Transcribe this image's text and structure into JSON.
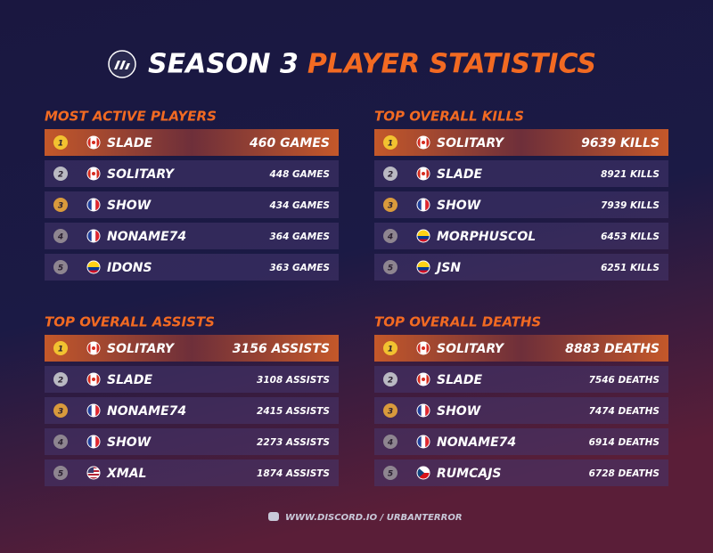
{
  "header": {
    "title_main": "SEASON 3",
    "title_accent": "PLAYER STATISTICS"
  },
  "tables": [
    {
      "title": "MOST ACTIVE PLAYERS",
      "rows": [
        {
          "rank": 1,
          "player": "SLADE",
          "stat": "460 GAMES"
        },
        {
          "rank": 2,
          "player": "SOLITARY",
          "stat": "448 GAMES"
        },
        {
          "rank": 3,
          "player": "SHOW",
          "stat": "434 GAMES"
        },
        {
          "rank": 4,
          "player": "NONAME74",
          "stat": "364 GAMES"
        },
        {
          "rank": 5,
          "player": "IDONS",
          "stat": "363 GAMES"
        }
      ]
    },
    {
      "title": "TOP OVERALL KILLS",
      "rows": [
        {
          "rank": 1,
          "player": "SOLITARY",
          "stat": "9639 KILLS"
        },
        {
          "rank": 2,
          "player": "SLADE",
          "stat": "8921 KILLS"
        },
        {
          "rank": 3,
          "player": "SHOW",
          "stat": "7939 KILLS"
        },
        {
          "rank": 4,
          "player": "MORPHUSCOL",
          "stat": "6453 KILLS"
        },
        {
          "rank": 5,
          "player": "JSN",
          "stat": "6251 KILLS"
        }
      ]
    },
    {
      "title": "TOP OVERALL ASSISTS",
      "rows": [
        {
          "rank": 1,
          "player": "SOLITARY",
          "stat": "3156 ASSISTS"
        },
        {
          "rank": 2,
          "player": "SLADE",
          "stat": "3108 ASSISTS"
        },
        {
          "rank": 3,
          "player": "NONAME74",
          "stat": "2415 ASSISTS"
        },
        {
          "rank": 4,
          "player": "SHOW",
          "stat": "2273 ASSISTS"
        },
        {
          "rank": 5,
          "player": "XMAL",
          "stat": "1874 ASSISTS"
        }
      ]
    },
    {
      "title": "TOP OVERALL DEATHS",
      "rows": [
        {
          "rank": 1,
          "player": "SOLITARY",
          "stat": "8883 DEATHS"
        },
        {
          "rank": 2,
          "player": "SLADE",
          "stat": "7546 DEATHS"
        },
        {
          "rank": 3,
          "player": "SHOW",
          "stat": "7474 DEATHS"
        },
        {
          "rank": 4,
          "player": "NONAME74",
          "stat": "6914 DEATHS"
        },
        {
          "rank": 5,
          "player": "RUMCAJS",
          "stat": "6728 DEATHS"
        }
      ]
    }
  ],
  "footer": {
    "link": "WWW.DISCORD.IO / URBANTERROR"
  }
}
